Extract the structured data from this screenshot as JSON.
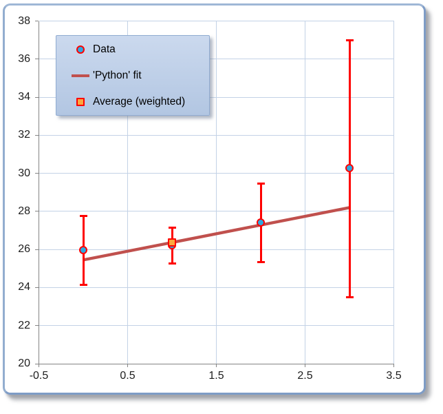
{
  "chart_data": {
    "type": "scatter",
    "title": "",
    "xlabel": "",
    "ylabel": "",
    "xlim": [
      -0.5,
      3.5
    ],
    "ylim": [
      20,
      38
    ],
    "grid": true,
    "xticks": [
      {
        "value": -0.5,
        "label": "-0.5"
      },
      {
        "value": 0.5,
        "label": "0.5"
      },
      {
        "value": 1.5,
        "label": "1.5"
      },
      {
        "value": 2.5,
        "label": "2.5"
      },
      {
        "value": 3.5,
        "label": "3.5"
      }
    ],
    "yticks": [
      {
        "value": 20,
        "label": "20"
      },
      {
        "value": 22,
        "label": "22"
      },
      {
        "value": 24,
        "label": "24"
      },
      {
        "value": 26,
        "label": "26"
      },
      {
        "value": 28,
        "label": "28"
      },
      {
        "value": 30,
        "label": "30"
      },
      {
        "value": 32,
        "label": "32"
      },
      {
        "value": 34,
        "label": "34"
      },
      {
        "value": 36,
        "label": "36"
      },
      {
        "value": 38,
        "label": "38"
      }
    ],
    "series": [
      {
        "name": "Data",
        "type": "scatter",
        "marker": "circle",
        "marker_fill": "#2EA8E0",
        "marker_stroke": "#FE0100",
        "error_color": "#FE0100",
        "x": [
          0,
          1,
          2,
          3
        ],
        "y": [
          25.95,
          26.2,
          27.4,
          30.25
        ],
        "yerr": [
          1.8,
          0.95,
          2.05,
          6.75
        ]
      },
      {
        "name": "'Python' fit",
        "type": "line",
        "color": "#C0504D",
        "x": [
          0,
          3
        ],
        "y": [
          25.45,
          28.2
        ]
      },
      {
        "name": "Average (weighted)",
        "type": "scatter",
        "marker": "square",
        "marker_fill": "#FCA73E",
        "marker_stroke": "#FE0100",
        "x": [
          1
        ],
        "y": [
          26.35
        ]
      }
    ],
    "legend": {
      "position": "upper-left",
      "entries": [
        {
          "label": "Data",
          "marker": "circle"
        },
        {
          "label": "'Python' fit",
          "marker": "line"
        },
        {
          "label": "Average (weighted)",
          "marker": "square"
        }
      ]
    }
  },
  "colors": {
    "gridline": "#C3D2E6",
    "axis": "#848484",
    "tick_label": "#1d1d1d",
    "error_bar": "#FE0100",
    "data_marker_fill": "#2EA8E0",
    "average_marker_fill": "#FCA73E",
    "fit_line": "#C0504D",
    "legend_bg_top": "#CBD9EE",
    "legend_bg_bottom": "#B2C6E2",
    "legend_border": "#90ABD1",
    "frame_border": "#7E9CC6"
  }
}
